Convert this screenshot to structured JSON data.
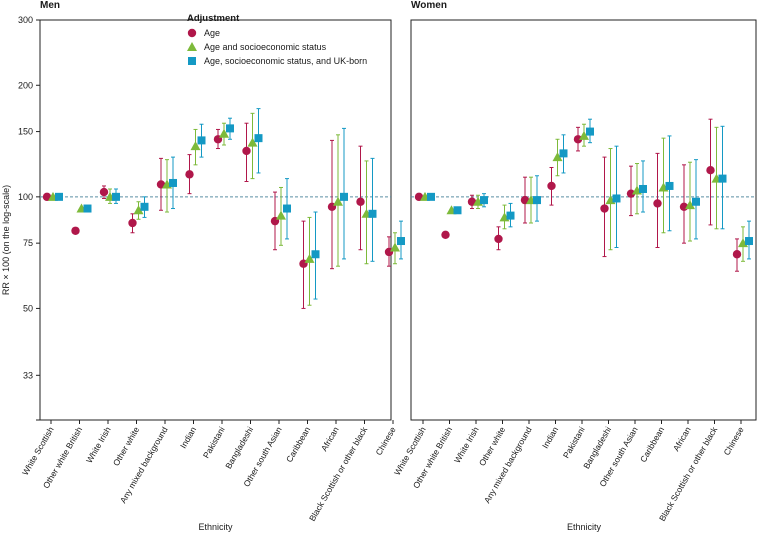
{
  "chart_data": {
    "type": "scatter",
    "subtype": "point-range",
    "y_scale": "log",
    "ylabel": "RR × 100 (on the log-scale)",
    "xlabel": "Ethnicity",
    "yticks": [
      33,
      50,
      75,
      100,
      150,
      200,
      300
    ],
    "ylim": [
      25,
      300
    ],
    "reference_line": 100,
    "legend": {
      "title": "Adjustment",
      "entries": [
        {
          "name": "Age",
          "marker": "circle",
          "color": "#b0174a"
        },
        {
          "name": "Age and socioeconomic status",
          "marker": "triangle",
          "color": "#7dba3a"
        },
        {
          "name": "Age, socioeconomic status, and UK-born",
          "marker": "square",
          "color": "#1499c4"
        }
      ]
    },
    "panels": [
      {
        "title": "Men",
        "categories": [
          "White Scottish",
          "Other white British",
          "White Irish",
          "Other white",
          "Any mixed background",
          "Indian",
          "Pakistani",
          "Bangladeshi",
          "Other south Asian",
          "Caribbean",
          "African",
          "Black Scottish or other black",
          "Chinese"
        ],
        "series": [
          {
            "name": "Age",
            "values": [
              100,
              81,
              103,
              85,
              108,
              115,
              143,
              133,
              86,
              66,
              94,
              97,
              71
            ],
            "lower": [
              null,
              null,
              99,
              80,
              92,
              102,
              135,
              110,
              72,
              50,
              64,
              72,
              65
            ],
            "upper": [
              null,
              null,
              107,
              90,
              127,
              130,
              152,
              158,
              103,
              86,
              142,
              137,
              78
            ]
          },
          {
            "name": "Age and socioeconomic status",
            "values": [
              100,
              93,
              100,
              92,
              108,
              137,
              148,
              140,
              89,
              68,
              97,
              90,
              73
            ],
            "lower": [
              null,
              null,
              96,
              87,
              91,
              122,
              138,
              112,
              74,
              51,
              65,
              66,
              66
            ],
            "upper": [
              null,
              null,
              105,
              97,
              126,
              152,
              158,
              168,
              106,
              88,
              147,
              125,
              80
            ]
          },
          {
            "name": "Age, socioeconomic status, and UK-born",
            "values": [
              100,
              93,
              100,
              94,
              109,
              142,
              153,
              144,
              93,
              70,
              100,
              90,
              76
            ],
            "lower": [
              null,
              null,
              96,
              88,
              93,
              128,
              143,
              116,
              77,
              53,
              68,
              67,
              68
            ],
            "upper": [
              null,
              null,
              105,
              100,
              128,
              157,
              163,
              173,
              112,
              91,
              153,
              127,
              86
            ]
          }
        ]
      },
      {
        "title": "Women",
        "categories": [
          "White Scottish",
          "Other white British",
          "White Irish",
          "Other white",
          "Any mixed background",
          "Indian",
          "Pakistani",
          "Bangladeshi",
          "Other south Asian",
          "Caribbean",
          "African",
          "Black Scottish or other black",
          "Chinese"
        ],
        "series": [
          {
            "name": "Age",
            "values": [
              100,
              79,
              97,
              77,
              98,
              107,
              143,
              93,
              102,
              96,
              94,
              118,
              70
            ],
            "lower": [
              null,
              null,
              93,
              72,
              85,
              95,
              133,
              69,
              89,
              73,
              75,
              84,
              63
            ],
            "upper": [
              null,
              null,
              101,
              83,
              113,
              120,
              154,
              128,
              121,
              131,
              122,
              162,
              77
            ]
          },
          {
            "name": "Age and socioeconomic status",
            "values": [
              100,
              92,
              97,
              88,
              98,
              128,
              146,
              98,
              104,
              106,
              95,
              112,
              75
            ],
            "lower": [
              null,
              null,
              93,
              82,
              85,
              114,
              137,
              72,
              90,
              80,
              76,
              82,
              67
            ],
            "upper": [
              null,
              null,
              101,
              95,
              113,
              143,
              157,
              135,
              123,
              144,
              124,
              154,
              83
            ]
          },
          {
            "name": "Age, socioeconomic status, and UK-born",
            "values": [
              100,
              92,
              98,
              89,
              98,
              131,
              150,
              99,
              105,
              107,
              97,
              112,
              76
            ],
            "lower": [
              null,
              null,
              94,
              83,
              86,
              116,
              140,
              73,
              91,
              81,
              77,
              82,
              68
            ],
            "upper": [
              null,
              null,
              102,
              96,
              114,
              147,
              162,
              137,
              125,
              146,
              126,
              155,
              86
            ]
          }
        ]
      }
    ]
  }
}
